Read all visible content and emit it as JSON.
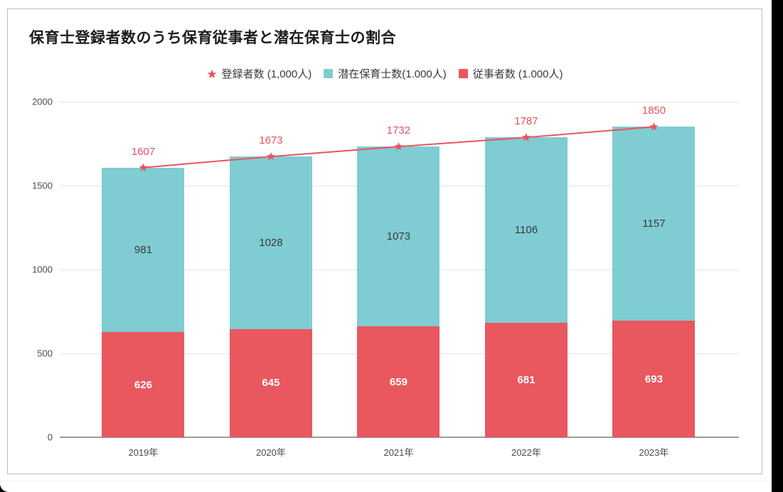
{
  "window": {
    "background": "#000000",
    "surface_background": "#ffffff"
  },
  "chart_data": {
    "type": "bar",
    "subtype": "stacked-bars-with-line-overlay",
    "title": "保育士登録者数のうち保育従事者と潜在保育士の割合",
    "categories": [
      "2019年",
      "2020年",
      "2021年",
      "2022年",
      "2023年"
    ],
    "series": [
      {
        "name": "従事者数 (1.000人)",
        "type": "bar",
        "stack": "total",
        "color": "#e9575f",
        "label_color": "#ffffff",
        "label_bold": true,
        "values": [
          626,
          645,
          659,
          681,
          693
        ]
      },
      {
        "name": "潜在保育士数(1.000人)",
        "type": "bar",
        "stack": "total",
        "color": "#7fccd2",
        "label_color": "#3a3a3a",
        "label_bold": false,
        "values": [
          981,
          1028,
          1073,
          1106,
          1157
        ]
      },
      {
        "name": "登録者数 (1,000人)",
        "type": "line",
        "marker": "star",
        "color": "#e95462",
        "label_color": "#ea5060",
        "values": [
          1607,
          1673,
          1732,
          1787,
          1850
        ]
      }
    ],
    "legend": [
      {
        "label": "登録者数 (1,000人)",
        "marker": "star",
        "color": "#e95462"
      },
      {
        "label": "潜在保育士数(1.000人)",
        "marker": "square",
        "color": "#7fccd2"
      },
      {
        "label": "従事者数 (1.000人)",
        "marker": "square",
        "color": "#e9575f"
      }
    ],
    "ylim": [
      0,
      2000
    ],
    "yticks": [
      0,
      500,
      1000,
      1500,
      2000
    ],
    "grid": true,
    "legend_position": "top",
    "colors": {
      "grid_line": "#e5e5e5",
      "axis_line": "#9b9b9b",
      "tick_text": "#4a4a4a"
    }
  }
}
